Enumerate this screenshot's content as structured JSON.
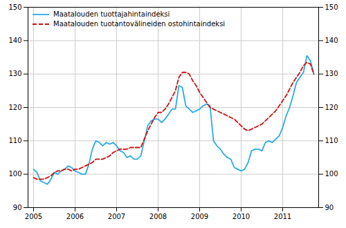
{
  "chart_data": {
    "type": "line",
    "categories": [
      "2005",
      null,
      null,
      null,
      null,
      null,
      null,
      null,
      null,
      null,
      null,
      null,
      "2006",
      null,
      null,
      null,
      null,
      null,
      null,
      null,
      null,
      null,
      null,
      null,
      "2007",
      null,
      null,
      null,
      null,
      null,
      null,
      null,
      null,
      null,
      null,
      null,
      "2008",
      null,
      null,
      null,
      null,
      null,
      null,
      null,
      null,
      null,
      null,
      null,
      "2009",
      null,
      null,
      null,
      null,
      null,
      null,
      null,
      null,
      null,
      null,
      null,
      "2010",
      null,
      null,
      null,
      null,
      null,
      null,
      null,
      null,
      null,
      null,
      null,
      "2011",
      null,
      null,
      null,
      null,
      null,
      null,
      null,
      null,
      null
    ],
    "series": [
      {
        "name": "Maatalouden tuottajahintaindeksi",
        "color": "#29ABE2",
        "line_style": "solid",
        "values": [
          101.5,
          100.5,
          98.0,
          97.5,
          97.0,
          98.5,
          100.5,
          100.0,
          101.0,
          101.5,
          102.5,
          102.0,
          101.0,
          100.5,
          100.0,
          100.0,
          103.0,
          107.5,
          110.0,
          109.5,
          108.5,
          109.5,
          109.0,
          109.5,
          108.5,
          107.0,
          106.5,
          105.0,
          105.5,
          104.5,
          104.5,
          105.5,
          110.0,
          114.5,
          116.0,
          116.5,
          116.5,
          115.5,
          116.5,
          118.0,
          119.5,
          119.5,
          126.5,
          126.0,
          120.5,
          119.5,
          118.5,
          119.0,
          119.5,
          120.5,
          121.0,
          120.5,
          110.0,
          108.5,
          107.5,
          106.0,
          105.0,
          104.5,
          102.0,
          101.5,
          101.0,
          101.5,
          103.5,
          107.0,
          107.5,
          107.5,
          107.0,
          109.5,
          110.0,
          109.5,
          110.5,
          111.5,
          114.0,
          117.5,
          120.0,
          123.5,
          127.5,
          129.0,
          130.5,
          135.5,
          134.0,
          130.0
        ]
      },
      {
        "name": "Maatalouden tuotantovälineiden ostohintaindeksi",
        "color": "#CC1111",
        "line_style": "dashed",
        "axis": "y2",
        "values": [
          99.0,
          98.5,
          98.5,
          98.5,
          99.0,
          99.5,
          100.5,
          101.0,
          101.0,
          101.5,
          101.5,
          101.0,
          101.5,
          101.5,
          102.0,
          102.5,
          103.0,
          103.5,
          104.5,
          104.5,
          104.5,
          105.0,
          105.5,
          106.5,
          107.0,
          107.5,
          107.5,
          107.5,
          108.0,
          108.0,
          108.0,
          108.0,
          110.5,
          113.0,
          115.0,
          117.0,
          118.5,
          118.5,
          119.5,
          121.0,
          123.0,
          125.0,
          129.0,
          130.5,
          130.5,
          130.0,
          128.0,
          126.5,
          124.5,
          123.0,
          121.5,
          120.0,
          119.5,
          119.0,
          118.5,
          118.0,
          117.5,
          117.0,
          116.5,
          115.5,
          114.5,
          113.5,
          113.0,
          113.5,
          114.0,
          114.5,
          115.0,
          116.0,
          117.0,
          118.0,
          119.0,
          120.5,
          122.0,
          123.5,
          125.5,
          127.5,
          129.0,
          130.5,
          132.5,
          133.5,
          133.0,
          130.0
        ]
      }
    ],
    "ylim": [
      90,
      150
    ],
    "yticks": [
      90,
      100,
      110,
      120,
      130,
      140,
      150
    ],
    "y2lim": [
      90,
      150
    ],
    "y2ticks": [
      90,
      100,
      110,
      120,
      130,
      140,
      150
    ],
    "grid": true,
    "legend": "upper left"
  }
}
